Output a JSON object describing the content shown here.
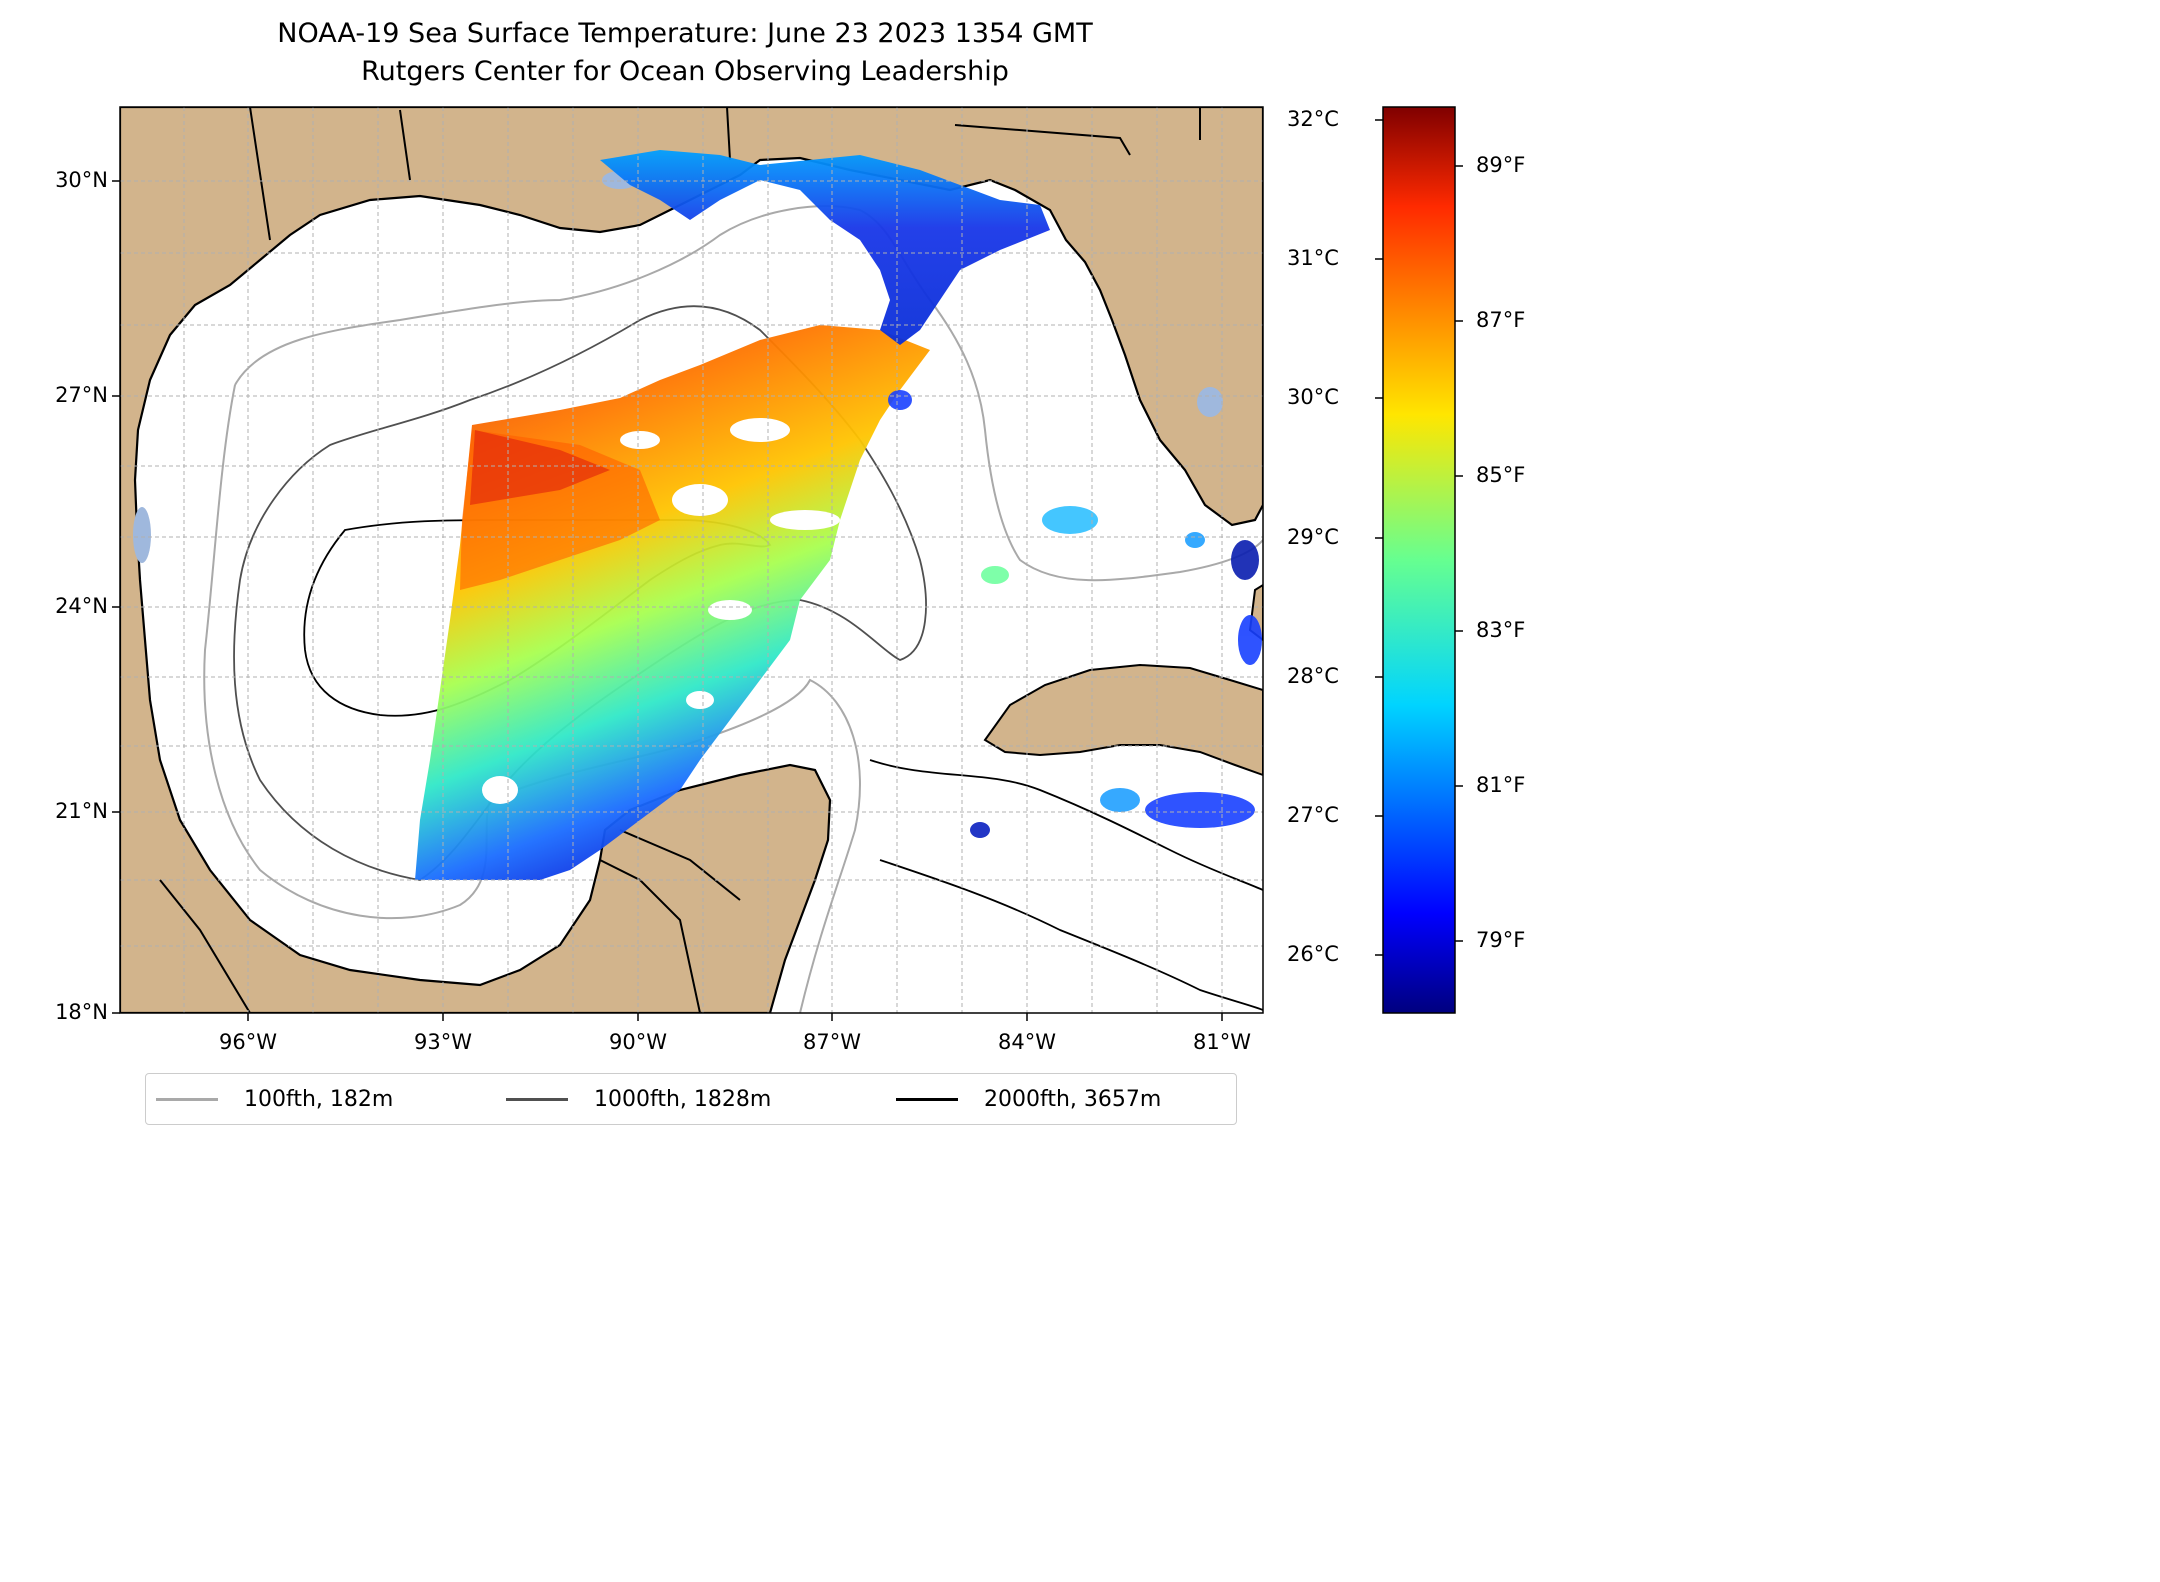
{
  "title": {
    "line1": "NOAA-19 Sea Surface Temperature: June 23 2023 1354 GMT",
    "line2": "Rutgers Center for Ocean Observing Leadership"
  },
  "map": {
    "lat_range": [
      18,
      31
    ],
    "lon_range": [
      -97.3,
      -79.7
    ],
    "lat_ticks": [
      {
        "value": 18,
        "label": "18°N"
      },
      {
        "value": 21,
        "label": "21°N"
      },
      {
        "value": 24,
        "label": "24°N"
      },
      {
        "value": 27,
        "label": "27°N"
      },
      {
        "value": 30,
        "label": "30°N"
      }
    ],
    "lon_ticks": [
      {
        "value": -96,
        "label": "96°W"
      },
      {
        "value": -93,
        "label": "93°W"
      },
      {
        "value": -90,
        "label": "90°W"
      },
      {
        "value": -87,
        "label": "87°W"
      },
      {
        "value": -84,
        "label": "84°W"
      },
      {
        "value": -81,
        "label": "81°W"
      }
    ],
    "gridlines": true,
    "land_color": "#d2b48c",
    "lake_color": "#9fb8dd"
  },
  "colorbar": {
    "colormap": "jet",
    "celsius_ticks": [
      "32°C",
      "31°C",
      "30°C",
      "29°C",
      "28°C",
      "27°C",
      "26°C"
    ],
    "fahrenheit_ticks": [
      "89°F",
      "87°F",
      "85°F",
      "83°F",
      "81°F",
      "79°F"
    ],
    "range_c": [
      25.6,
      32.1
    ]
  },
  "legend": {
    "items": [
      {
        "label": "100fth, 182m",
        "color": "#a9a9a9"
      },
      {
        "label": "1000fth, 1828m",
        "color": "#505050"
      },
      {
        "label": "2000fth, 3657m",
        "color": "#000000"
      }
    ]
  }
}
